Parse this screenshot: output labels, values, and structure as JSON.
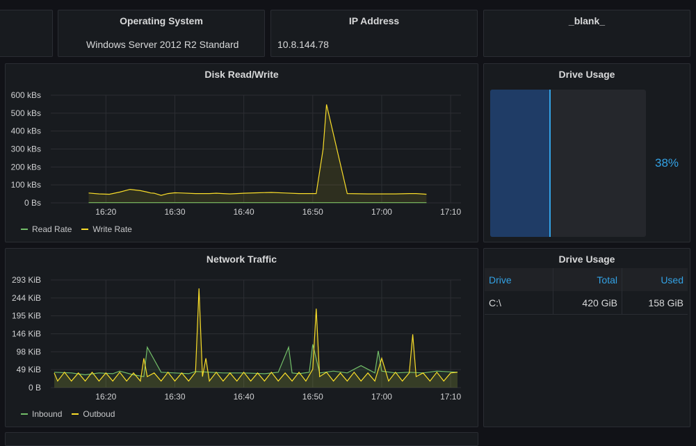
{
  "stats": {
    "os": {
      "title": "Operating System",
      "value": "Windows Server 2012 R2 Standard"
    },
    "ip": {
      "title": "IP Address",
      "value": "10.8.144.78"
    },
    "blank": {
      "title": "_blank_"
    }
  },
  "disk_panel": {
    "title": "Disk Read/Write",
    "legend": [
      "Read Rate",
      "Write Rate"
    ]
  },
  "network_panel": {
    "title": "Network Traffic",
    "legend": [
      "Inbound",
      "Outboud"
    ]
  },
  "drive_gauge": {
    "title": "Drive Usage",
    "value_label": "38%",
    "fraction": 0.38
  },
  "drive_table": {
    "title": "Drive Usage",
    "columns": [
      "Drive",
      "Total",
      "Used"
    ],
    "rows": [
      [
        "C:\\",
        "420 GiB",
        "158 GiB"
      ]
    ]
  },
  "colors": {
    "accent": "#33a2e5",
    "green": "#73bf69",
    "yellow": "#fade2a",
    "gauge_fill": "#1f3c66"
  },
  "chart_data": [
    {
      "type": "line",
      "title": "Disk Read/Write",
      "x_ticks": [
        "16:20",
        "16:30",
        "16:40",
        "16:50",
        "17:00",
        "17:10"
      ],
      "y_ticks": [
        "0 Bs",
        "100 kBs",
        "200 kBs",
        "300 kBs",
        "400 kBs",
        "500 kBs",
        "600 kBs"
      ],
      "ylim": [
        0,
        600
      ],
      "grid": true,
      "legend_position": "bottom-left",
      "series": [
        {
          "name": "Read Rate",
          "color": "#73bf69",
          "x": [
            "16:17:30",
            "16:25",
            "16:35",
            "16:45",
            "16:55",
            "17:05",
            "17:06:30"
          ],
          "values": [
            1,
            1,
            1,
            1,
            1,
            1,
            1
          ]
        },
        {
          "name": "Write Rate",
          "color": "#fade2a",
          "x": [
            "16:17:30",
            "16:19",
            "16:20:30",
            "16:22",
            "16:23:30",
            "16:25",
            "16:26",
            "16:26:30",
            "16:27",
            "16:28",
            "16:29",
            "16:30",
            "16:31",
            "16:33",
            "16:35",
            "16:36",
            "16:37",
            "16:38",
            "16:39",
            "16:40",
            "16:42",
            "16:44",
            "16:46",
            "16:48",
            "16:49:30",
            "16:50:30",
            "16:51:30",
            "16:52",
            "16:55",
            "16:58",
            "17:00",
            "17:02",
            "17:04",
            "17:05",
            "17:06:30"
          ],
          "values": [
            55,
            50,
            48,
            60,
            75,
            68,
            60,
            55,
            54,
            42,
            52,
            56,
            55,
            52,
            52,
            54,
            52,
            50,
            52,
            54,
            56,
            58,
            55,
            52,
            52,
            52,
            300,
            548,
            52,
            50,
            50,
            50,
            52,
            52,
            48
          ]
        }
      ]
    },
    {
      "type": "line",
      "title": "Network Traffic",
      "x_ticks": [
        "16:20",
        "16:30",
        "16:40",
        "16:50",
        "17:00",
        "17:10"
      ],
      "y_ticks": [
        "0 B",
        "49 KiB",
        "98 KiB",
        "146 KiB",
        "195 KiB",
        "244 KiB",
        "293 KiB"
      ],
      "ylim": [
        0,
        293
      ],
      "grid": true,
      "legend_position": "bottom-left",
      "series": [
        {
          "name": "Inbound",
          "color": "#73bf69",
          "x": [
            "16:12:30",
            "16:15",
            "16:17",
            "16:19",
            "16:21",
            "16:22",
            "16:24",
            "16:25:30",
            "16:26",
            "16:28",
            "16:30",
            "16:32",
            "16:33",
            "16:35",
            "16:37",
            "16:40",
            "16:43",
            "16:45",
            "16:46:30",
            "16:47",
            "16:48",
            "16:49:30",
            "16:50",
            "16:51",
            "16:53",
            "16:55",
            "16:57",
            "16:59",
            "16:59:30",
            "17:00",
            "17:02",
            "17:04",
            "17:06",
            "17:08",
            "17:11"
          ],
          "values": [
            42,
            40,
            35,
            40,
            38,
            45,
            35,
            30,
            110,
            42,
            40,
            38,
            44,
            42,
            40,
            40,
            38,
            42,
            110,
            40,
            38,
            42,
            118,
            40,
            45,
            40,
            60,
            40,
            100,
            45,
            40,
            42,
            40,
            45,
            42
          ]
        },
        {
          "name": "Outboud",
          "color": "#fade2a",
          "x": [
            "16:12:30",
            "16:13",
            "16:14",
            "16:15",
            "16:16",
            "16:17",
            "16:18",
            "16:19",
            "16:20",
            "16:21",
            "16:22",
            "16:23",
            "16:24",
            "16:25",
            "16:25:30",
            "16:26",
            "16:27",
            "16:28",
            "16:29",
            "16:30",
            "16:31",
            "16:32",
            "16:33",
            "16:33:30",
            "16:34",
            "16:34:30",
            "16:35",
            "16:36",
            "16:37",
            "16:38",
            "16:39",
            "16:40",
            "16:41",
            "16:42",
            "16:43",
            "16:44",
            "16:45",
            "16:46",
            "16:47",
            "16:48",
            "16:49",
            "16:50",
            "16:50:30",
            "16:51",
            "16:52",
            "16:53",
            "16:54",
            "16:55",
            "16:56",
            "16:57",
            "16:58",
            "16:59",
            "17:00",
            "17:01",
            "17:02",
            "17:03",
            "17:04",
            "17:04:30",
            "17:05",
            "17:06",
            "17:07",
            "17:08",
            "17:09",
            "17:10",
            "17:11"
          ],
          "values": [
            40,
            18,
            42,
            18,
            40,
            18,
            42,
            18,
            40,
            18,
            42,
            18,
            40,
            18,
            80,
            30,
            40,
            18,
            42,
            18,
            40,
            18,
            42,
            270,
            30,
            80,
            18,
            42,
            18,
            40,
            18,
            42,
            18,
            40,
            18,
            42,
            18,
            40,
            18,
            42,
            18,
            50,
            215,
            30,
            42,
            18,
            40,
            18,
            42,
            18,
            40,
            18,
            80,
            18,
            42,
            18,
            40,
            145,
            30,
            40,
            18,
            42,
            18,
            40,
            42
          ]
        }
      ]
    }
  ]
}
